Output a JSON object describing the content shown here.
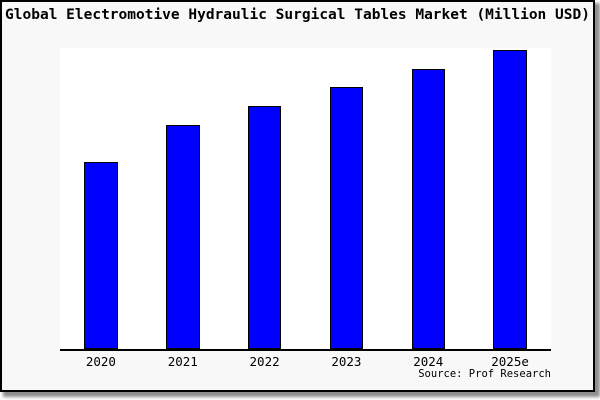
{
  "window": {
    "bg_color": "#f8f8f8",
    "border_color": "#000000",
    "shadow_color": "#8f8f8f",
    "plot_bg_color": "#ffffff"
  },
  "chart_data": {
    "type": "bar",
    "title": "Global Electromotive Hydraulic Surgical Tables Market (Million USD)",
    "source_note": "Source: Prof Research",
    "categories": [
      "2020",
      "2021",
      "2022",
      "2023",
      "2024",
      "2025e"
    ],
    "values": [
      187,
      224,
      243,
      262,
      280,
      299
    ],
    "note": "no numeric y-axis is shown in the image; values are rendered bar heights in plot pixels",
    "xlabel": "",
    "ylabel": "",
    "ylim": [
      0,
      301
    ],
    "grid": false,
    "legend": false,
    "y_axis_visible": false,
    "bar_fill": "#0000ff",
    "bar_border": "#000000"
  }
}
